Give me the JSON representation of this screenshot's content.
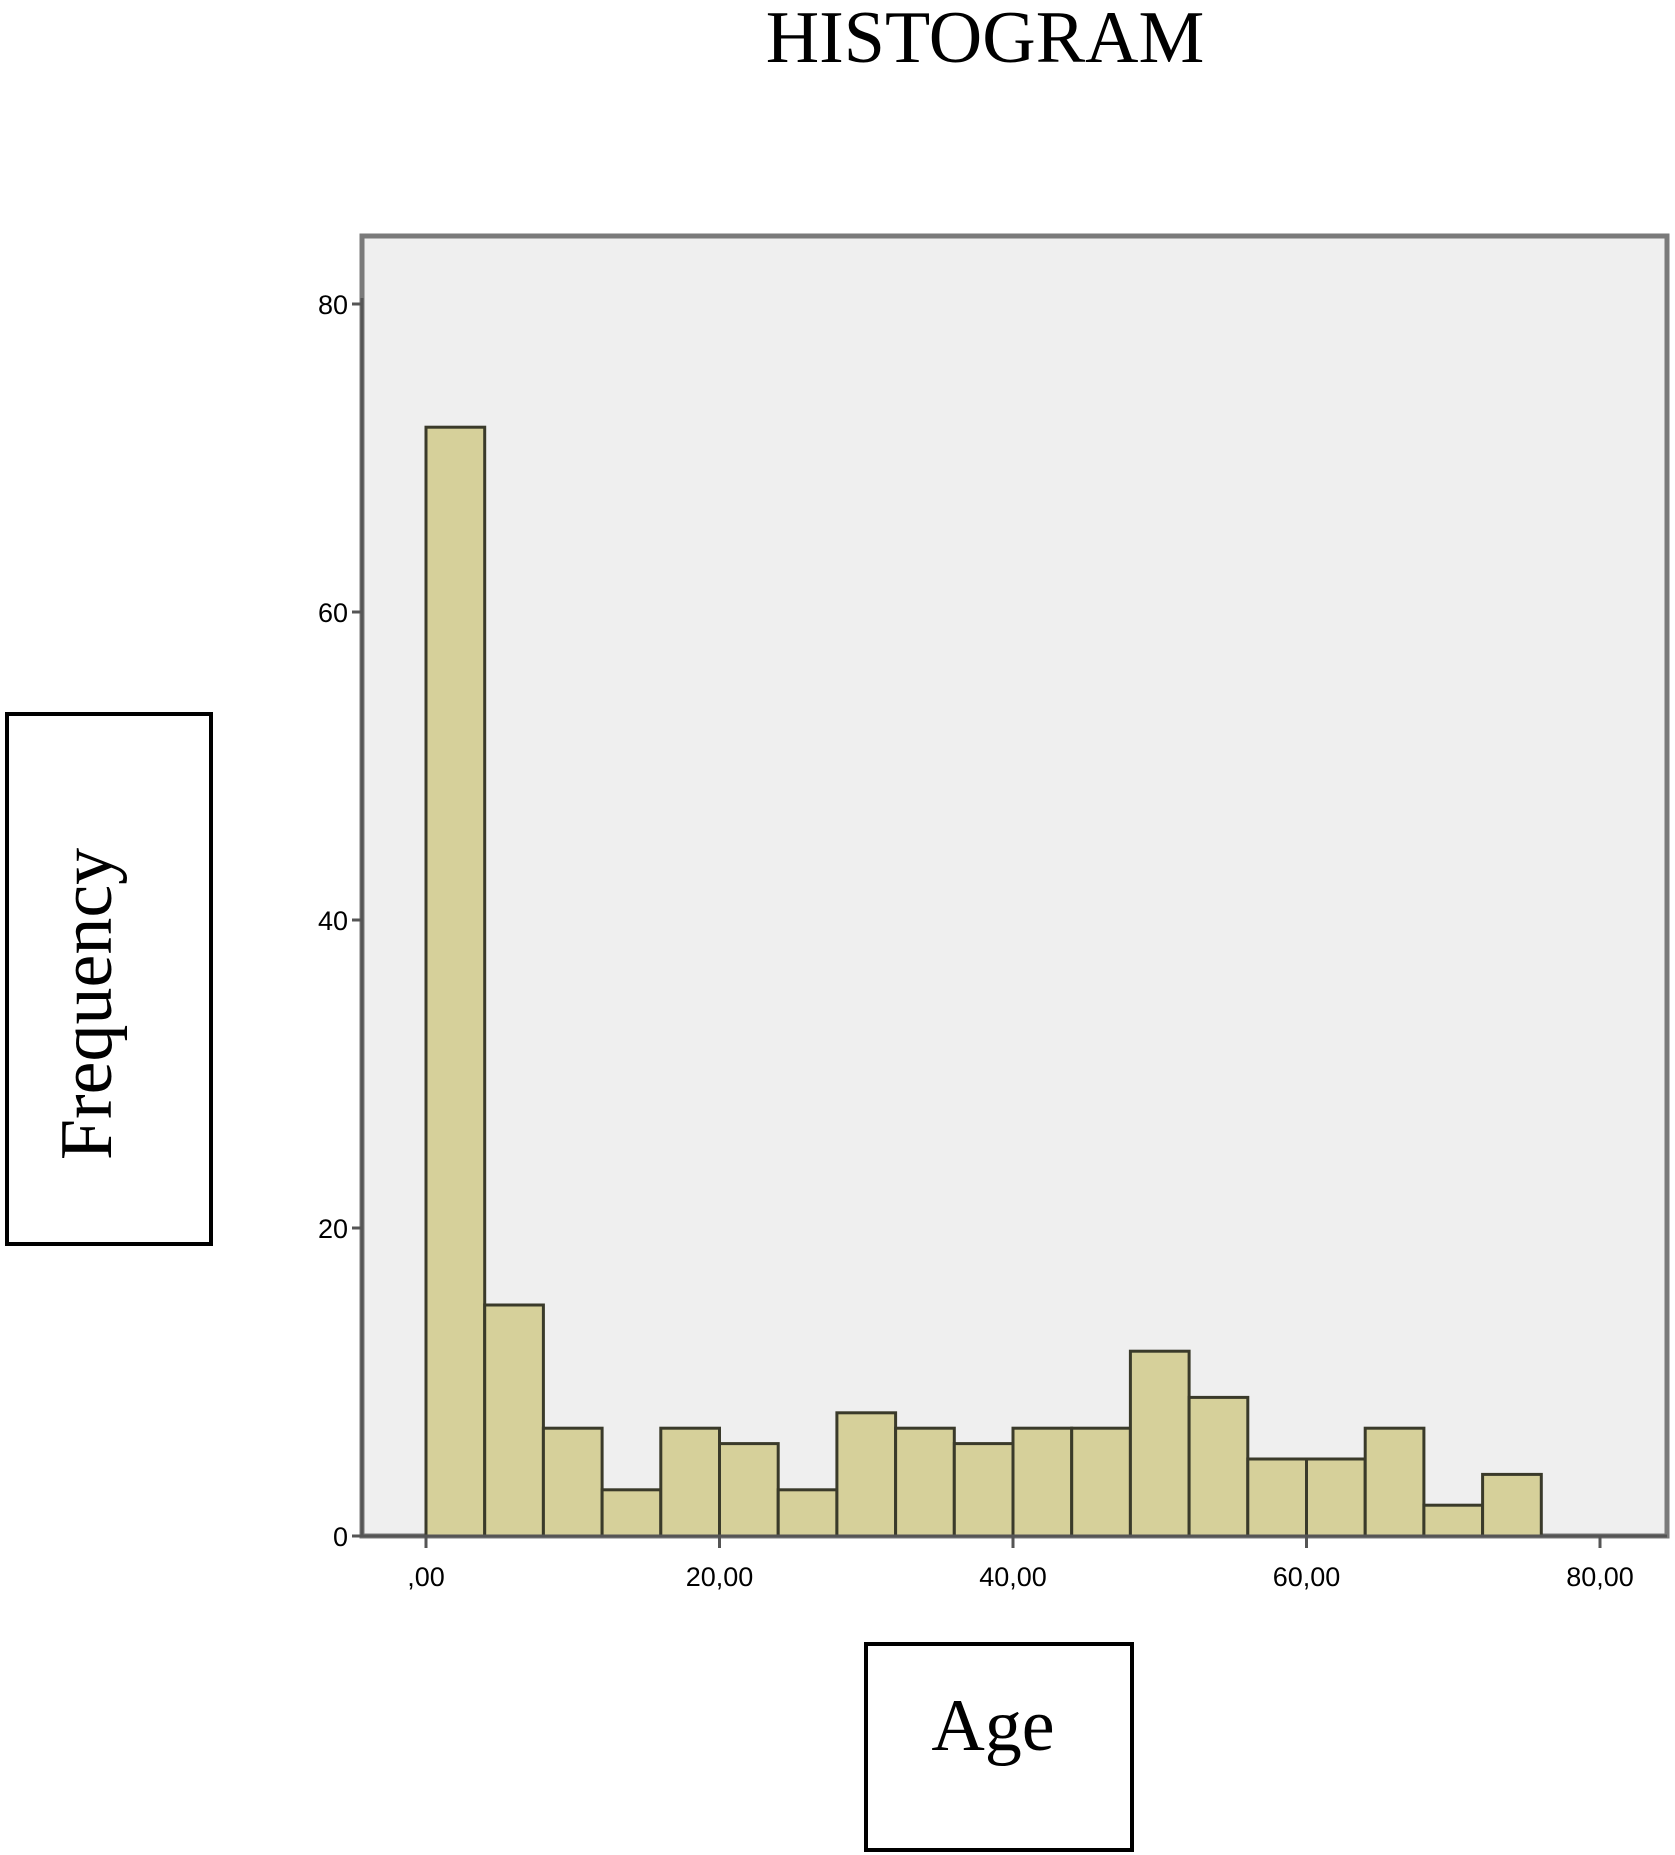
{
  "chart_data": {
    "type": "bar",
    "title": "HISTOGRAM",
    "xlabel": "Age",
    "ylabel": "Frequency",
    "x_tick_labels": [
      ",00",
      "20,00",
      "40,00",
      "60,00",
      "80,00"
    ],
    "x_tick_values": [
      0,
      20,
      40,
      60,
      80
    ],
    "y_tick_labels": [
      "0",
      "20",
      "40",
      "60",
      "80"
    ],
    "y_tick_values": [
      0,
      20,
      40,
      60,
      80
    ],
    "xlim": [
      -4.5,
      83.5
    ],
    "ylim": [
      0,
      85
    ],
    "bin_width": 4,
    "bins": [
      {
        "start": 0,
        "end": 4,
        "count": 72
      },
      {
        "start": 4,
        "end": 8,
        "count": 15
      },
      {
        "start": 8,
        "end": 12,
        "count": 7
      },
      {
        "start": 12,
        "end": 16,
        "count": 3
      },
      {
        "start": 16,
        "end": 20,
        "count": 7
      },
      {
        "start": 20,
        "end": 24,
        "count": 6
      },
      {
        "start": 24,
        "end": 28,
        "count": 3
      },
      {
        "start": 28,
        "end": 32,
        "count": 8
      },
      {
        "start": 32,
        "end": 36,
        "count": 7
      },
      {
        "start": 36,
        "end": 40,
        "count": 6
      },
      {
        "start": 40,
        "end": 44,
        "count": 7
      },
      {
        "start": 44,
        "end": 48,
        "count": 7
      },
      {
        "start": 48,
        "end": 52,
        "count": 12
      },
      {
        "start": 52,
        "end": 56,
        "count": 9
      },
      {
        "start": 56,
        "end": 60,
        "count": 5
      },
      {
        "start": 60,
        "end": 64,
        "count": 5
      },
      {
        "start": 64,
        "end": 68,
        "count": 7
      },
      {
        "start": 68,
        "end": 72,
        "count": 2
      },
      {
        "start": 72,
        "end": 76,
        "count": 4
      }
    ],
    "grid": false,
    "legend": "none"
  },
  "colors": {
    "bar_fill": "#d6d09a",
    "bar_stroke": "#3a3a2a",
    "plot_background": "#efefef",
    "frame": "#7a7a7a",
    "axis": "#555555"
  }
}
